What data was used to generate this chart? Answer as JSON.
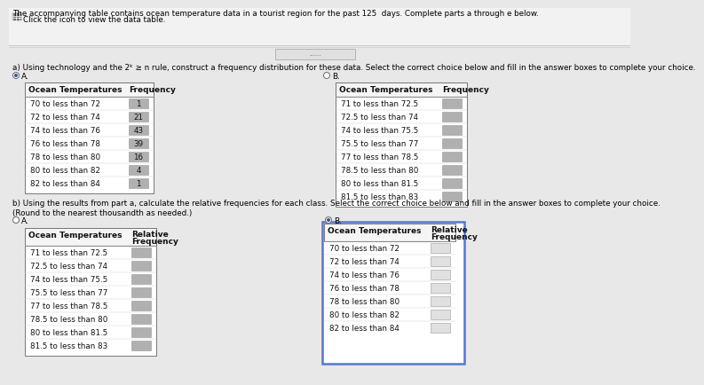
{
  "title_line1": "The accompanying table contains ocean temperature data in a tourist region for the past 125  days. Complete parts a through e below.",
  "title_line2": "Click the icon to view the data table.",
  "part_a_text": "a) Using technology and the 2ᵏ ≥ n rule, construct a frequency distribution for these data. Select the correct choice below and fill in the answer boxes to complete your choice.",
  "table_a_header": [
    "Ocean Temperatures",
    "Frequency"
  ],
  "table_a_rows": [
    [
      "70 to less than 72",
      "1"
    ],
    [
      "72 to less than 74",
      "21"
    ],
    [
      "74 to less than 76",
      "43"
    ],
    [
      "76 to less than 78",
      "39"
    ],
    [
      "78 to less than 80",
      "16"
    ],
    [
      "80 to less than 82",
      "4"
    ],
    [
      "82 to less than 84",
      "1"
    ]
  ],
  "table_b_header": [
    "Ocean Temperatures",
    "Frequency"
  ],
  "table_b_rows": [
    [
      "71 to less than 72.5",
      ""
    ],
    [
      "72.5 to less than 74",
      ""
    ],
    [
      "74 to less than 75.5",
      ""
    ],
    [
      "75.5 to less than 77",
      ""
    ],
    [
      "77 to less than 78.5",
      ""
    ],
    [
      "78.5 to less than 80",
      ""
    ],
    [
      "80 to less than 81.5",
      ""
    ],
    [
      "81.5 to less than 83",
      ""
    ]
  ],
  "part_b_text1": "b) Using the results from part a, calculate the relative frequencies for each class. Select the correct choice below and fill in the answer boxes to complete your choice.",
  "part_b_text2": "(Round to the nearest thousandth as needed.)",
  "table_b2a_rows": [
    [
      "71 to less than 72.5",
      ""
    ],
    [
      "72.5 to less than 74",
      ""
    ],
    [
      "74 to less than 75.5",
      ""
    ],
    [
      "75.5 to less than 77",
      ""
    ],
    [
      "77 to less than 78.5",
      ""
    ],
    [
      "78.5 to less than 80",
      ""
    ],
    [
      "80 to less than 81.5",
      ""
    ],
    [
      "81.5 to less than 83",
      ""
    ]
  ],
  "table_b2b_rows": [
    [
      "70 to less than 72",
      ""
    ],
    [
      "72 to less than 74",
      ""
    ],
    [
      "74 to less than 76",
      ""
    ],
    [
      "76 to less than 78",
      ""
    ],
    [
      "78 to less than 80",
      ""
    ],
    [
      "80 to less than 82",
      ""
    ],
    [
      "82 to less than 84",
      ""
    ]
  ],
  "bg_color": "#e8e8e8",
  "white": "#ffffff",
  "box_fill": "#b0b0b0",
  "box_fill_white": "#e0e0e0",
  "selected_color": "#3355aa",
  "border_blue": "#5577cc",
  "title_bg": "#f0f0f0",
  "sep_line_color": "#cccccc",
  "table_border": "#888888",
  "text_color": "#111111"
}
